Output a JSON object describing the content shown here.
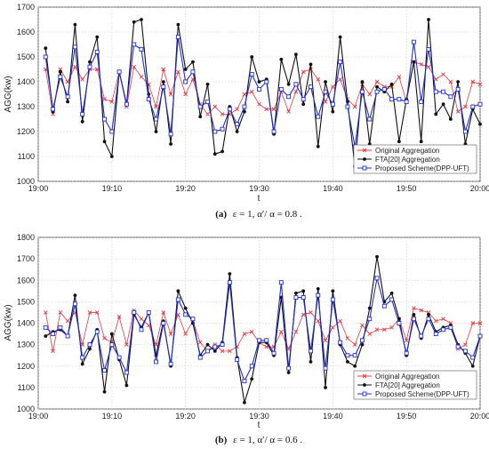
{
  "chart_data": [
    {
      "type": "line",
      "caption_label": "(a)",
      "caption_text": "ε = 1,  α′/ α = 0.8 .",
      "xlabel": "t",
      "ylabel": "AGG(kw)",
      "x_ticks": [
        "19:00",
        "19:10",
        "19:20",
        "19:30",
        "19:40",
        "19:50",
        "20:00"
      ],
      "y_ticks": [
        1000,
        1100,
        1200,
        1300,
        1400,
        1500,
        1600,
        1700
      ],
      "xlim": [
        0,
        60
      ],
      "ylim": [
        1000,
        1700
      ],
      "grid": true,
      "legend_position": "bottom-right",
      "x": [
        1,
        2,
        3,
        4,
        5,
        6,
        7,
        8,
        9,
        10,
        11,
        12,
        13,
        14,
        15,
        16,
        17,
        18,
        19,
        20,
        21,
        22,
        23,
        24,
        25,
        26,
        27,
        28,
        29,
        30,
        31,
        32,
        33,
        34,
        35,
        36,
        37,
        38,
        39,
        40,
        41,
        42,
        43,
        44,
        45,
        46,
        47,
        48,
        49,
        50,
        51,
        52,
        53,
        54,
        55,
        56,
        57,
        58,
        59,
        60
      ],
      "series": [
        {
          "name": "Original Aggregation",
          "color": "#e8383d",
          "marker": "x",
          "values": [
            1450,
            1270,
            1450,
            1400,
            1460,
            1410,
            1450,
            1450,
            1330,
            1320,
            1440,
            1300,
            1460,
            1420,
            1390,
            1300,
            1450,
            1350,
            1440,
            1350,
            1410,
            1310,
            1270,
            1300,
            1270,
            1270,
            1290,
            1350,
            1360,
            1310,
            1290,
            1290,
            1360,
            1280,
            1360,
            1440,
            1450,
            1410,
            1320,
            1380,
            1410,
            1330,
            1300,
            1390,
            1350,
            1400,
            1380,
            1380,
            1420,
            1320,
            1480,
            1470,
            1460,
            1410,
            1430,
            1400,
            1280,
            1300,
            1400,
            1390
          ]
        },
        {
          "name": "FTA[20] Aggregation",
          "color": "#111111",
          "marker": "o",
          "values": [
            1535,
            1280,
            1440,
            1320,
            1630,
            1240,
            1480,
            1580,
            1160,
            1100,
            1440,
            1310,
            1640,
            1650,
            1350,
            1200,
            1400,
            1150,
            1630,
            1450,
            1480,
            1260,
            1390,
            1110,
            1120,
            1300,
            1200,
            1280,
            1500,
            1400,
            1410,
            1190,
            1490,
            1390,
            1510,
            1310,
            1470,
            1140,
            1400,
            1280,
            1580,
            1320,
            1060,
            1400,
            1150,
            1380,
            1360,
            1390,
            1160,
            1330,
            1480,
            1160,
            1650,
            1270,
            1310,
            1250,
            1400,
            1150,
            1290,
            1230
          ]
        },
        {
          "name": "Proposed Scheme(DPP-UFT)",
          "color": "#1f2fd6",
          "marker": "s",
          "values": [
            1500,
            1290,
            1420,
            1340,
            1540,
            1270,
            1460,
            1520,
            1250,
            1200,
            1440,
            1310,
            1550,
            1530,
            1330,
            1250,
            1380,
            1190,
            1580,
            1400,
            1440,
            1300,
            1320,
            1200,
            1210,
            1290,
            1230,
            1300,
            1430,
            1370,
            1400,
            1200,
            1370,
            1340,
            1390,
            1330,
            1380,
            1260,
            1360,
            1310,
            1480,
            1300,
            1140,
            1360,
            1250,
            1360,
            1370,
            1330,
            1330,
            1320,
            1560,
            1320,
            1530,
            1360,
            1360,
            1340,
            1370,
            1200,
            1300,
            1310
          ]
        }
      ]
    },
    {
      "type": "line",
      "caption_label": "(b)",
      "caption_text": "ε = 1,  α′/ α = 0.6 .",
      "xlabel": "t",
      "ylabel": "AGG(kw)",
      "x_ticks": [
        "19:00",
        "19:10",
        "19:20",
        "19:30",
        "19:40",
        "19:50",
        "20:00"
      ],
      "y_ticks": [
        1000,
        1100,
        1200,
        1300,
        1400,
        1500,
        1600,
        1700,
        1800
      ],
      "xlim": [
        0,
        60
      ],
      "ylim": [
        1000,
        1800
      ],
      "grid": true,
      "legend_position": "bottom-right",
      "x": [
        1,
        2,
        3,
        4,
        5,
        6,
        7,
        8,
        9,
        10,
        11,
        12,
        13,
        14,
        15,
        16,
        17,
        18,
        19,
        20,
        21,
        22,
        23,
        24,
        25,
        26,
        27,
        28,
        29,
        30,
        31,
        32,
        33,
        34,
        35,
        36,
        37,
        38,
        39,
        40,
        41,
        42,
        43,
        44,
        45,
        46,
        47,
        48,
        49,
        50,
        51,
        52,
        53,
        54,
        55,
        56,
        57,
        58,
        59,
        60
      ],
      "series": [
        {
          "name": "Original Aggregation",
          "color": "#e8383d",
          "marker": "x",
          "values": [
            1450,
            1270,
            1450,
            1410,
            1450,
            1300,
            1450,
            1450,
            1330,
            1310,
            1430,
            1300,
            1460,
            1420,
            1390,
            1300,
            1450,
            1350,
            1440,
            1350,
            1410,
            1310,
            1270,
            1300,
            1270,
            1270,
            1290,
            1350,
            1360,
            1310,
            1290,
            1290,
            1360,
            1280,
            1360,
            1440,
            1450,
            1410,
            1320,
            1380,
            1410,
            1330,
            1300,
            1390,
            1350,
            1370,
            1370,
            1380,
            1420,
            1320,
            1470,
            1460,
            1450,
            1410,
            1420,
            1400,
            1280,
            1300,
            1400,
            1400
          ]
        },
        {
          "name": "FTA[20] Aggregation",
          "color": "#111111",
          "marker": "o",
          "values": [
            1340,
            1360,
            1370,
            1340,
            1530,
            1210,
            1280,
            1370,
            1080,
            1350,
            1230,
            1110,
            1440,
            1380,
            1450,
            1250,
            1410,
            1200,
            1550,
            1470,
            1400,
            1250,
            1300,
            1270,
            1310,
            1630,
            1240,
            1030,
            1140,
            1310,
            1310,
            1250,
            1520,
            1170,
            1540,
            1550,
            1220,
            1560,
            1100,
            1550,
            1300,
            1220,
            1200,
            1300,
            1470,
            1710,
            1500,
            1540,
            1420,
            1250,
            1440,
            1330,
            1440,
            1360,
            1380,
            1390,
            1300,
            1260,
            1200,
            1340
          ]
        },
        {
          "name": "Proposed Scheme(DPP-UFT)",
          "color": "#1f2fd6",
          "marker": "s",
          "values": [
            1380,
            1350,
            1380,
            1340,
            1490,
            1240,
            1300,
            1360,
            1180,
            1300,
            1240,
            1170,
            1450,
            1370,
            1450,
            1220,
            1400,
            1210,
            1510,
            1440,
            1420,
            1240,
            1270,
            1290,
            1300,
            1590,
            1230,
            1130,
            1200,
            1320,
            1320,
            1260,
            1590,
            1190,
            1520,
            1520,
            1270,
            1530,
            1190,
            1510,
            1310,
            1250,
            1250,
            1320,
            1420,
            1610,
            1480,
            1510,
            1400,
            1260,
            1420,
            1340,
            1420,
            1350,
            1370,
            1380,
            1290,
            1270,
            1240,
            1340
          ]
        }
      ]
    }
  ]
}
